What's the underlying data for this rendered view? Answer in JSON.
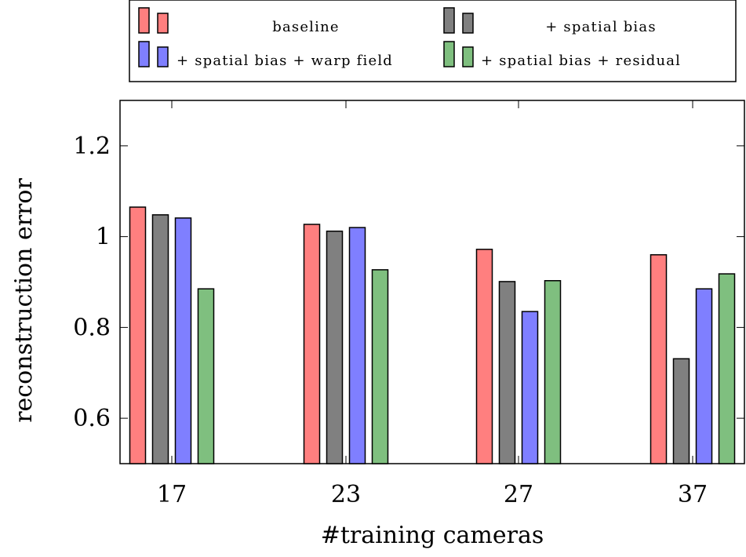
{
  "chart_data": {
    "type": "bar",
    "categories": [
      "17",
      "23",
      "27",
      "37"
    ],
    "series": [
      {
        "name": "baseline",
        "color": "#ff7f7f",
        "values": [
          1.065,
          1.027,
          0.972,
          0.96
        ]
      },
      {
        "name": "+ spatial bias",
        "color": "#808080",
        "values": [
          1.048,
          1.012,
          0.901,
          0.731
        ]
      },
      {
        "name": "+ spatial bias + warp field",
        "color": "#7f7fff",
        "values": [
          1.041,
          1.02,
          0.835,
          0.885
        ]
      },
      {
        "name": "+ spatial bias + residual",
        "color": "#7fbf7f",
        "values": [
          0.885,
          0.927,
          0.903,
          0.918
        ]
      }
    ],
    "xlabel": "#training cameras",
    "ylabel": "reconstruction error",
    "ylim": [
      0.5,
      1.3
    ],
    "yticks": [
      0.6,
      0.8,
      1.0,
      1.2
    ],
    "ytick_labels": [
      "0.6",
      "0.8",
      "1",
      "1.2"
    ],
    "grid": false,
    "legend_position": "top"
  }
}
